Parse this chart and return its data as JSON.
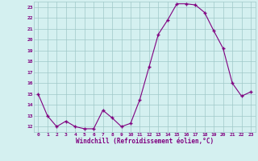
{
  "x": [
    0,
    1,
    2,
    3,
    4,
    5,
    6,
    7,
    8,
    9,
    10,
    11,
    12,
    13,
    14,
    15,
    16,
    17,
    18,
    19,
    20,
    21,
    22,
    23
  ],
  "y": [
    15.0,
    13.0,
    12.0,
    12.5,
    12.0,
    11.8,
    11.8,
    13.5,
    12.8,
    12.0,
    12.3,
    14.5,
    17.5,
    20.5,
    21.8,
    23.3,
    23.3,
    23.2,
    22.5,
    20.8,
    19.2,
    16.0,
    14.8,
    15.2
  ],
  "xlabel": "Windchill (Refroidissement éolien,°C)",
  "ylim": [
    11.5,
    23.5
  ],
  "xlim": [
    -0.5,
    23.5
  ],
  "yticks": [
    12,
    13,
    14,
    15,
    16,
    17,
    18,
    19,
    20,
    21,
    22,
    23
  ],
  "xticks": [
    0,
    1,
    2,
    3,
    4,
    5,
    6,
    7,
    8,
    9,
    10,
    11,
    12,
    13,
    14,
    15,
    16,
    17,
    18,
    19,
    20,
    21,
    22,
    23
  ],
  "line_color": "#800080",
  "marker_color": "#800080",
  "bg_color": "#d4f0f0",
  "grid_color": "#a0c8c8",
  "tick_color": "#800080",
  "label_color": "#800080",
  "font_family": "monospace"
}
